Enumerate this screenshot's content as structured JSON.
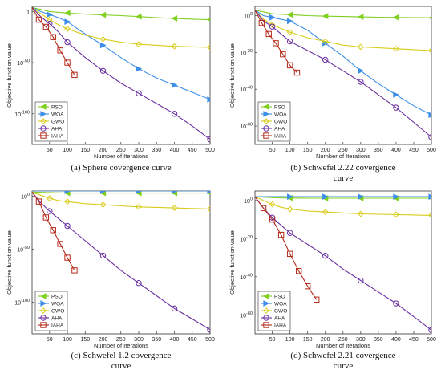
{
  "figure": {
    "colors": {
      "PSO": "#7fcf1f",
      "WOA": "#3c8ee6",
      "GWO": "#d8cc1a",
      "AHA": "#6a2fa0",
      "IAHA": "#b52a1a",
      "axis": "#333333"
    }
  },
  "chart_data": [
    {
      "id": "a",
      "type": "line",
      "caption_lines": [
        "(a) Sphere covergence curve"
      ],
      "xlabel": "Number of Iterations",
      "ylabel": "Objective function value",
      "xlim": [
        1,
        500
      ],
      "ylim_log10": [
        -130,
        5
      ],
      "log_y": true,
      "x_ticks": [
        "50",
        "100",
        "150",
        "200",
        "250",
        "300",
        "350",
        "400",
        "450",
        "500"
      ],
      "y_ticks": [
        {
          "base": "1",
          "exp": "0"
        },
        {
          "base": "10",
          "exp": "-50"
        },
        {
          "base": "10",
          "exp": "-100"
        }
      ],
      "legend_position": "bottom-left",
      "series": [
        {
          "name": "PSO",
          "marker": "triangle-left",
          "x": [
            1,
            50,
            100,
            150,
            200,
            250,
            300,
            350,
            400,
            450,
            500
          ],
          "log10_y": [
            4,
            0,
            -1.5,
            -2.5,
            -3.3,
            -4,
            -5,
            -6,
            -6.8,
            -7.5,
            -8
          ]
        },
        {
          "name": "WOA",
          "marker": "triangle-right",
          "x": [
            1,
            25,
            50,
            75,
            100,
            150,
            200,
            250,
            300,
            350,
            400,
            450,
            500
          ],
          "log10_y": [
            4,
            0,
            -3,
            -6,
            -10,
            -22,
            -33,
            -45,
            -56,
            -65,
            -72,
            -79,
            -86
          ]
        },
        {
          "name": "GWO",
          "marker": "diamond",
          "x": [
            1,
            25,
            50,
            75,
            100,
            150,
            200,
            250,
            300,
            350,
            400,
            450,
            500
          ],
          "log10_y": [
            4,
            -2,
            -8,
            -13,
            -17,
            -23,
            -27,
            -30,
            -32,
            -33,
            -34,
            -34.5,
            -35
          ]
        },
        {
          "name": "AHA",
          "marker": "circle",
          "x": [
            1,
            25,
            50,
            75,
            100,
            150,
            200,
            250,
            300,
            350,
            400,
            450,
            500
          ],
          "log10_y": [
            4,
            -5,
            -12,
            -20,
            -30,
            -45,
            -58,
            -70,
            -80,
            -90,
            -100,
            -112,
            -125
          ]
        },
        {
          "name": "IAHA",
          "marker": "square",
          "x": [
            1,
            20,
            40,
            60,
            80,
            100,
            120
          ],
          "log10_y": [
            4,
            -8,
            -15,
            -25,
            -38,
            -50,
            -62
          ]
        }
      ]
    },
    {
      "id": "b",
      "type": "line",
      "caption_lines": [
        "(b) Schwefel 2.22 covergence",
        "curve"
      ],
      "xlabel": "Number of Iterations",
      "ylabel": "Objective function value",
      "xlim": [
        1,
        500
      ],
      "ylim_log10": [
        -70,
        5
      ],
      "log_y": true,
      "x_ticks": [
        "50",
        "100",
        "150",
        "200",
        "250",
        "300",
        "350",
        "400",
        "450",
        "500"
      ],
      "y_ticks": [
        {
          "base": "10",
          "exp": "0"
        },
        {
          "base": "10",
          "exp": "-20"
        },
        {
          "base": "10",
          "exp": "-40"
        },
        {
          "base": "10",
          "exp": "-60"
        }
      ],
      "legend_position": "bottom-left",
      "series": [
        {
          "name": "PSO",
          "marker": "triangle-left",
          "x": [
            1,
            50,
            100,
            150,
            200,
            250,
            300,
            350,
            400,
            450,
            500
          ],
          "log10_y": [
            3,
            1,
            0.5,
            0,
            -0.3,
            -0.5,
            -0.7,
            -0.9,
            -1,
            -1.1,
            -1.2
          ]
        },
        {
          "name": "WOA",
          "marker": "triangle-right",
          "x": [
            1,
            25,
            50,
            75,
            100,
            150,
            200,
            250,
            300,
            350,
            400,
            450,
            500
          ],
          "log10_y": [
            3,
            0,
            -1,
            -2,
            -3,
            -8,
            -15,
            -22,
            -30,
            -37,
            -43,
            -49,
            -54
          ]
        },
        {
          "name": "GWO",
          "marker": "diamond",
          "x": [
            1,
            25,
            50,
            75,
            100,
            150,
            200,
            250,
            300,
            350,
            400,
            450,
            500
          ],
          "log10_y": [
            3,
            -2,
            -5,
            -7,
            -9,
            -12,
            -14,
            -16,
            -17,
            -17.5,
            -18,
            -18.5,
            -19
          ]
        },
        {
          "name": "AHA",
          "marker": "circle",
          "x": [
            1,
            25,
            50,
            75,
            100,
            150,
            200,
            250,
            300,
            350,
            400,
            450,
            500
          ],
          "log10_y": [
            3,
            -3,
            -6,
            -10,
            -14,
            -19,
            -24,
            -30,
            -36,
            -43,
            -50,
            -58,
            -66
          ]
        },
        {
          "name": "IAHA",
          "marker": "square",
          "x": [
            1,
            20,
            40,
            60,
            80,
            100,
            120
          ],
          "log10_y": [
            3,
            -4,
            -10,
            -15,
            -21,
            -27,
            -31
          ]
        }
      ]
    },
    {
      "id": "c",
      "type": "line",
      "caption_lines": [
        "(c) Schwefel 1.2 covergence",
        "curve"
      ],
      "xlabel": "Number of Iterations",
      "ylabel": "Objective function value",
      "xlim": [
        1,
        500
      ],
      "ylim_log10": [
        -130,
        5
      ],
      "log_y": true,
      "x_ticks": [
        "50",
        "100",
        "150",
        "200",
        "250",
        "300",
        "350",
        "400",
        "450",
        "500"
      ],
      "y_ticks": [
        {
          "base": "10",
          "exp": "0"
        },
        {
          "base": "10",
          "exp": "-50"
        },
        {
          "base": "10",
          "exp": "-100"
        }
      ],
      "legend_position": "bottom-left",
      "series": [
        {
          "name": "PSO",
          "marker": "triangle-left",
          "x": [
            1,
            50,
            100,
            150,
            200,
            250,
            300,
            350,
            400,
            450,
            500
          ],
          "log10_y": [
            4,
            3.5,
            3,
            3,
            3,
            3,
            3,
            3,
            3,
            3,
            3
          ]
        },
        {
          "name": "WOA",
          "marker": "triangle-right",
          "x": [
            1,
            50,
            100,
            150,
            200,
            250,
            300,
            350,
            400,
            450,
            500
          ],
          "log10_y": [
            5,
            5,
            5,
            5,
            5,
            5,
            5,
            5,
            5,
            5,
            5
          ]
        },
        {
          "name": "GWO",
          "marker": "diamond",
          "x": [
            1,
            25,
            50,
            75,
            100,
            150,
            200,
            250,
            300,
            350,
            400,
            450,
            500
          ],
          "log10_y": [
            4,
            1,
            -2,
            -4,
            -5,
            -7,
            -8,
            -9,
            -10,
            -10.5,
            -11,
            -11.5,
            -12
          ]
        },
        {
          "name": "AHA",
          "marker": "circle",
          "x": [
            1,
            25,
            50,
            75,
            100,
            150,
            200,
            250,
            300,
            350,
            400,
            450,
            500
          ],
          "log10_y": [
            4,
            -6,
            -14,
            -21,
            -28,
            -42,
            -56,
            -70,
            -82,
            -94,
            -106,
            -116,
            -126
          ]
        },
        {
          "name": "IAHA",
          "marker": "square",
          "x": [
            1,
            20,
            40,
            60,
            80,
            100,
            120
          ],
          "log10_y": [
            4,
            -5,
            -20,
            -32,
            -45,
            -58,
            -70
          ]
        }
      ]
    },
    {
      "id": "d",
      "type": "line",
      "caption_lines": [
        "(d) Schwefel 2.21 covergence",
        "curve"
      ],
      "xlabel": "Number of Iterations",
      "ylabel": "Objective function value",
      "xlim": [
        1,
        500
      ],
      "ylim_log10": [
        -70,
        5
      ],
      "log_y": true,
      "x_ticks": [
        "50",
        "100",
        "150",
        "200",
        "250",
        "300",
        "350",
        "400",
        "450",
        "500"
      ],
      "y_ticks": [
        {
          "base": "10",
          "exp": "0"
        },
        {
          "base": "10",
          "exp": "-20"
        },
        {
          "base": "10",
          "exp": "-40"
        },
        {
          "base": "10",
          "exp": "-60"
        }
      ],
      "legend_position": "bottom-left",
      "series": [
        {
          "name": "PSO",
          "marker": "triangle-left",
          "x": [
            1,
            50,
            100,
            150,
            200,
            250,
            300,
            350,
            400,
            450,
            500
          ],
          "log10_y": [
            2,
            1.5,
            1.3,
            1.2,
            1.2,
            1.2,
            1.2,
            1.2,
            1.2,
            1.2,
            1.2
          ]
        },
        {
          "name": "WOA",
          "marker": "triangle-right",
          "x": [
            1,
            50,
            100,
            150,
            200,
            250,
            300,
            350,
            400,
            450,
            500
          ],
          "log10_y": [
            2,
            2,
            2,
            2,
            2,
            2,
            2,
            2,
            2,
            2,
            2
          ]
        },
        {
          "name": "GWO",
          "marker": "diamond",
          "x": [
            1,
            25,
            50,
            75,
            100,
            150,
            200,
            250,
            300,
            350,
            400,
            450,
            500
          ],
          "log10_y": [
            2,
            0,
            -2,
            -3.5,
            -4.5,
            -5.5,
            -6,
            -6.5,
            -7,
            -7.2,
            -7.4,
            -7.6,
            -7.8
          ]
        },
        {
          "name": "AHA",
          "marker": "circle",
          "x": [
            1,
            25,
            50,
            75,
            100,
            150,
            200,
            250,
            300,
            350,
            400,
            450,
            500
          ],
          "log10_y": [
            2,
            -4,
            -9,
            -13,
            -17,
            -23,
            -29,
            -36,
            -42,
            -48,
            -54,
            -61,
            -68
          ]
        },
        {
          "name": "IAHA",
          "marker": "square",
          "x": [
            1,
            25,
            50,
            75,
            100,
            125,
            150,
            175
          ],
          "log10_y": [
            2,
            -4,
            -10,
            -18,
            -28,
            -37,
            -45,
            -52
          ]
        }
      ]
    }
  ]
}
